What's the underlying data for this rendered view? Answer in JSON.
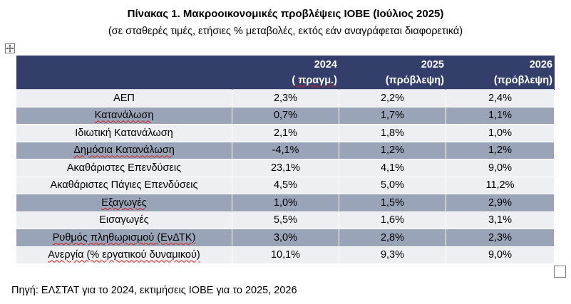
{
  "title": "Πίνακας 1. Μακροοικονομικές προβλέψεις ΙΟΒΕ (Ιούλιος 2025)",
  "subtitle": "(σε σταθερές τιμές, ετήσιες % μεταβολές, εκτός εάν αναγράφεται διαφορετικά)",
  "table": {
    "headers": [
      {
        "line1": "",
        "line2": ""
      },
      {
        "line1": "2024",
        "line2": "( πραγμ.)"
      },
      {
        "line1": "2025",
        "line2": "(πρόβλεψη)"
      },
      {
        "line1": "2026",
        "line2": "(πρόβλεψη)"
      }
    ],
    "rows": [
      {
        "label": "ΑΕΠ",
        "v2024": "2,3%",
        "v2025": "2,2%",
        "v2026": "2,4%"
      },
      {
        "label": "Κατανάλωση",
        "v2024": "0,7%",
        "v2025": "1,7%",
        "v2026": "1,1%"
      },
      {
        "label": "Ιδιωτική Κατανάλωση",
        "v2024": "2,1%",
        "v2025": "1,8%",
        "v2026": "1,0%"
      },
      {
        "label": "Δημόσια Κατανάλωση",
        "v2024": "-4,1%",
        "v2025": "1,2%",
        "v2026": "1,2%"
      },
      {
        "label": "Ακαθάριστες Επενδύσεις",
        "v2024": "23,1%",
        "v2025": "4,1%",
        "v2026": "9,0%"
      },
      {
        "label": "Ακαθάριστες Πάγιες Επενδύσεις",
        "v2024": "4,5%",
        "v2025": "5,0%",
        "v2026": "11,2%"
      },
      {
        "label": "Εξαγωγές",
        "v2024": "1,0%",
        "v2025": "1,5%",
        "v2026": "2,9%"
      },
      {
        "label": "Εισαγωγές",
        "v2024": "5,5%",
        "v2025": "1,6%",
        "v2026": "3,1%"
      },
      {
        "label": "Ρυθμός πληθωρισμού (ΕνΔΤΚ)",
        "v2024": "3,0%",
        "v2025": "2,8%",
        "v2026": "2,3%"
      },
      {
        "label": "Ανεργία (% εργατικού δυναμικού)",
        "v2024": "10,1%",
        "v2025": "9,3%",
        "v2026": "9,0%"
      }
    ]
  },
  "source": "Πηγή: ΕΛΣΤΑΤ για το 2024, εκτιμήσεις ΙΟΒΕ για το 2025, 2026",
  "colors": {
    "header_bg": "#333f6a",
    "row_light": "#eeeff3",
    "row_dark": "#9aa4b9"
  }
}
